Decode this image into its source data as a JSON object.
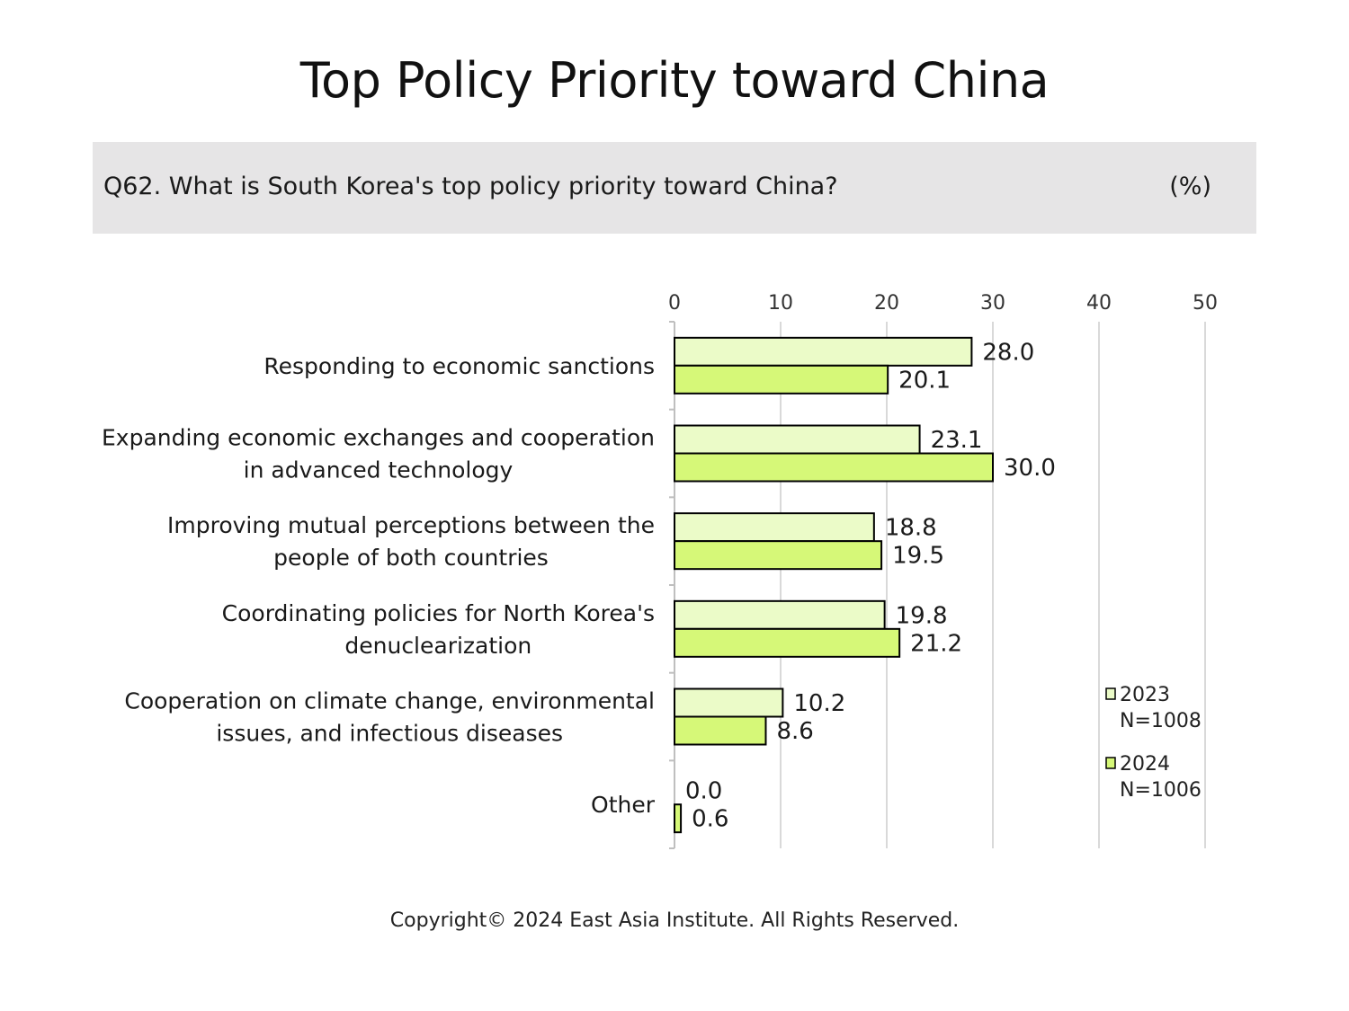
{
  "title": "Top Policy Priority toward China",
  "question": "Q62. What is South Korea's top policy priority toward China?",
  "unit": "(%)",
  "copyright": "Copyright© 2024 East Asia Institute. All Rights Reserved.",
  "colors": {
    "2023": "#ebfbc8",
    "2024": "#d6f878",
    "border": "#000000",
    "grid": "#d9d9d9"
  },
  "chart_data": {
    "type": "bar",
    "orientation": "horizontal",
    "categories": [
      [
        "Responding to economic sanctions"
      ],
      [
        "Expanding economic exchanges and cooperation",
        "in advanced technology"
      ],
      [
        "Improving mutual perceptions between the",
        "people of both countries"
      ],
      [
        "Coordinating policies for North Korea's",
        "denuclearization"
      ],
      [
        "Cooperation on climate change, environmental",
        "issues, and infectious diseases"
      ],
      [
        "Other"
      ]
    ],
    "series": [
      {
        "name": "2023",
        "n": "N=1008",
        "values": [
          28.0,
          23.1,
          18.8,
          19.8,
          10.2,
          0.0
        ],
        "labels": [
          "28.0",
          "23.1",
          "18.8",
          "19.8",
          "10.2",
          "0.0"
        ]
      },
      {
        "name": "2024",
        "n": "N=1006",
        "values": [
          20.1,
          30.0,
          19.5,
          21.2,
          8.6,
          0.6
        ],
        "labels": [
          "20.1",
          "30.0",
          "19.5",
          "21.2",
          "8.6",
          "0.6"
        ]
      }
    ],
    "xlim": [
      0,
      50
    ],
    "xticks": [
      0,
      10,
      20,
      30,
      40,
      50
    ],
    "grid": true,
    "legend_position": "bottom-right"
  }
}
